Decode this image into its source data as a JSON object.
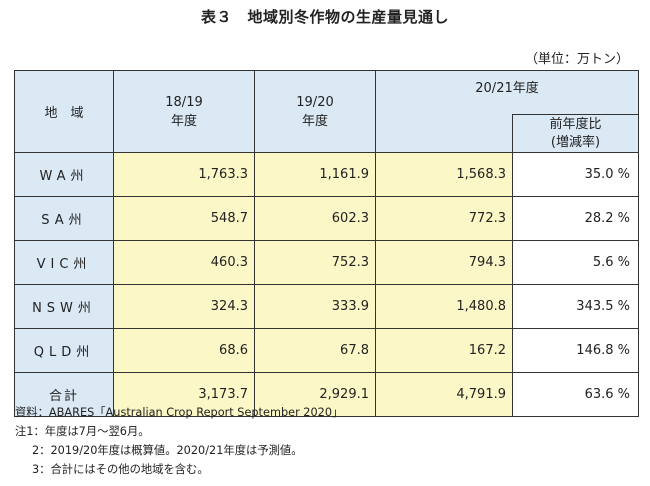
{
  "title": "表３　地域別冬作物の生産量見通し",
  "unit": "（単位：万トン）",
  "table": {
    "headers": {
      "region": "地　域",
      "col1_line1": "18/19",
      "col1_line2": "年度",
      "col2_line1": "19/20",
      "col2_line2": "年度",
      "col3": "20/21年度",
      "col4_line1": "前年度比",
      "col4_line2": "(増減率)"
    },
    "rows": [
      {
        "region": "WA州",
        "v1": "1,763.3",
        "v2": "1,161.9",
        "v3": "1,568.3",
        "pct": "35.0 %"
      },
      {
        "region": "SA州",
        "v1": "548.7",
        "v2": "602.3",
        "v3": "772.3",
        "pct": "28.2 %"
      },
      {
        "region": "VIC州",
        "v1": "460.3",
        "v2": "752.3",
        "v3": "794.3",
        "pct": "5.6 %"
      },
      {
        "region": "NSW州",
        "v1": "324.3",
        "v2": "333.9",
        "v3": "1,480.8",
        "pct": "343.5 %"
      },
      {
        "region": "QLD州",
        "v1": "68.6",
        "v2": "67.8",
        "v3": "167.2",
        "pct": "146.8 %"
      },
      {
        "region": "合計",
        "v1": "3,173.7",
        "v2": "2,929.1",
        "v3": "4,791.9",
        "pct": "63.6 %"
      }
    ]
  },
  "notes": {
    "source": "資料：ABARES「Australian Crop Report September 2020」",
    "note1": "注1：年度は7月～翌6月。",
    "note2": "2：2019/20年度は概算値。2020/21年度は予測値。",
    "note3": "3：合計にはその他の地域を含む。"
  },
  "colors": {
    "header_bg": "#dbe9f5",
    "value_bg": "#fbf7c6",
    "border": "#333333"
  }
}
